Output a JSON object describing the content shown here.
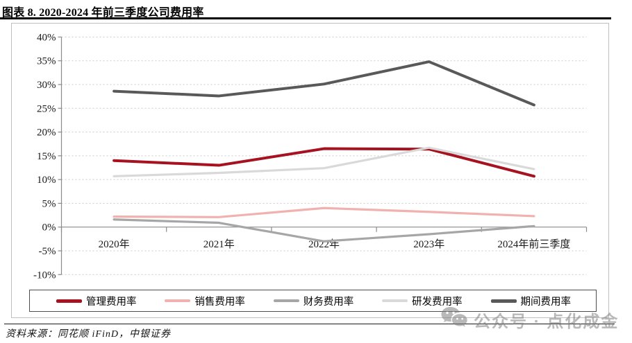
{
  "title": "图表 8. 2020-2024 年前三季度公司费用率",
  "source": "资料来源：同花顺 iFinD，中银证券",
  "watermark": {
    "icon": "wechat-logo",
    "text": "公众号 · 点化成金"
  },
  "colors": {
    "grid": "#c9c9c9",
    "axis": "#8a8a8a",
    "tick_label": "#1a1a1a",
    "frame_border": "#bfbfbf",
    "legend_border": "#4d4d4d",
    "watermark_gray": "#9a9a9a"
  },
  "chart_data": {
    "type": "line",
    "categories": [
      "2020年",
      "2021年",
      "2022年",
      "2023年",
      "2024年前三季度"
    ],
    "series": [
      {
        "name": "管理费用率",
        "color": "#A6121F",
        "width": 4,
        "values": [
          14.0,
          13.0,
          16.5,
          16.4,
          10.7
        ]
      },
      {
        "name": "销售费用率",
        "color": "#F0B1AF",
        "width": 3.2,
        "values": [
          2.2,
          2.1,
          4.0,
          3.2,
          2.3
        ]
      },
      {
        "name": "财务费用率",
        "color": "#A6A6A6",
        "width": 3.2,
        "values": [
          1.6,
          0.9,
          -3.0,
          -1.5,
          0.2
        ]
      },
      {
        "name": "研发费用率",
        "color": "#D9D9D9",
        "width": 3.2,
        "values": [
          10.7,
          11.4,
          12.4,
          16.7,
          12.2
        ]
      },
      {
        "name": "期间费用率",
        "color": "#595959",
        "width": 4,
        "values": [
          28.6,
          27.6,
          30.1,
          34.8,
          25.7
        ]
      }
    ],
    "xlabel": "",
    "ylabel": "",
    "ylim": [
      -10,
      40
    ],
    "ytick_step": 5,
    "ytick_format": "percent",
    "grid": "horizontal-dotted",
    "legend_position": "bottom-box"
  }
}
